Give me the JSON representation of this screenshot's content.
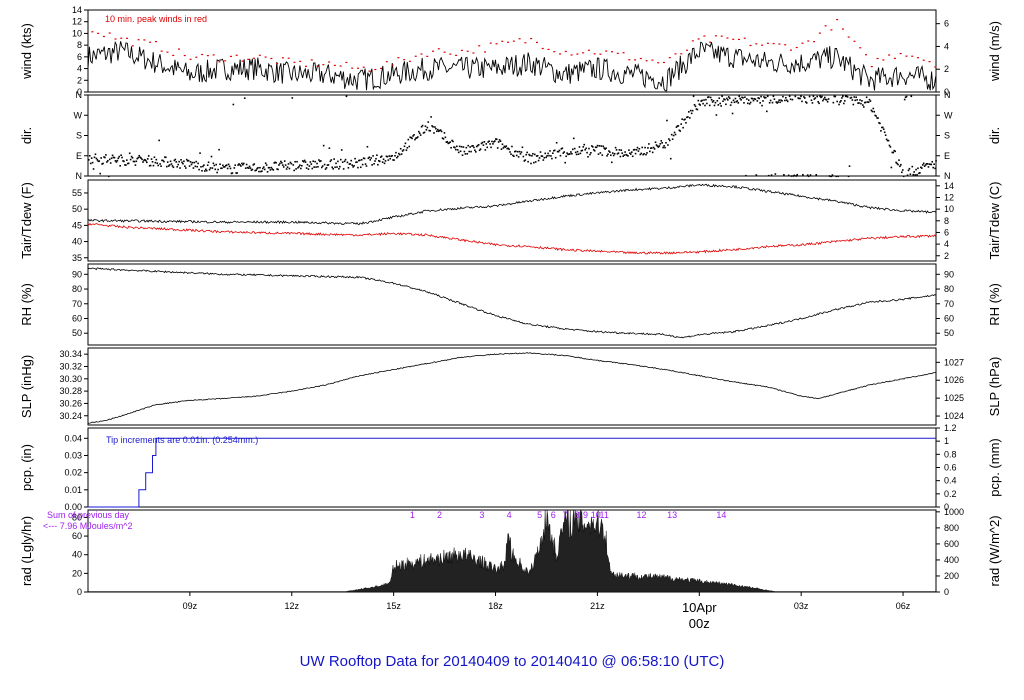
{
  "title": "UW Rooftop Data for 20140409  to  20140410 @ 06:58:10  (UTC)",
  "colors": {
    "black": "#000000",
    "red": "#e00000",
    "blue": "#1a1ad0",
    "purple": "#a020f0"
  },
  "chart_data": [
    {
      "id": "wind",
      "type": "line",
      "ylabel_left": "wind (kts)",
      "ylabel_right": "wind (m/s)",
      "ylim": [
        0,
        14
      ],
      "yticks_left": [
        0,
        2,
        4,
        6,
        8,
        10,
        12,
        14
      ],
      "ylim_right": [
        0,
        7.2
      ],
      "yticks_right": [
        0,
        2,
        4,
        6
      ],
      "annotation": "10 min. peak winds in red",
      "series": [
        {
          "color": "black",
          "x": [
            6.0,
            7.0,
            8.0,
            9.0,
            10.0,
            11.0,
            12.0,
            13.0,
            14.0,
            15.0,
            16.0,
            17.0,
            18.0,
            19.0,
            20.0,
            21.0,
            22.0,
            23.0,
            24.0,
            25.0,
            26.0,
            27.0,
            28.0,
            29.0,
            30.0,
            30.97
          ],
          "y": [
            6,
            7,
            5,
            3,
            4,
            4,
            3,
            3,
            2,
            3,
            4,
            4,
            4,
            5,
            3,
            4,
            3,
            2,
            7,
            6,
            5,
            5,
            6,
            2,
            3,
            2
          ]
        },
        {
          "color": "red",
          "style": "points",
          "x": [
            6.0,
            7.0,
            8.0,
            9.0,
            10.0,
            11.0,
            12.0,
            13.0,
            14.0,
            15.0,
            16.0,
            17.0,
            18.0,
            19.0,
            20.0,
            21.0,
            22.0,
            23.0,
            24.0,
            25.0,
            26.0,
            27.0,
            28.0,
            29.0,
            30.0,
            30.97
          ],
          "y": [
            11,
            9,
            8,
            6,
            6,
            6,
            5,
            5,
            4,
            5,
            7,
            7,
            8,
            9,
            7,
            7,
            6,
            5,
            9,
            9,
            8,
            8,
            12,
            5,
            7,
            5
          ]
        }
      ]
    },
    {
      "id": "dir",
      "type": "scatter",
      "ylabel_left": "dir.",
      "ylabel_right": "dir.",
      "ylim": [
        0,
        360
      ],
      "yticks_left": [
        "N",
        "E",
        "S",
        "W",
        "N"
      ],
      "yticks_right": [
        "N",
        "E",
        "S",
        "W",
        "N"
      ],
      "series": [
        {
          "color": "black",
          "x": [
            6.0,
            7.0,
            8.0,
            9.0,
            10.0,
            11.0,
            12.0,
            13.0,
            14.0,
            15.0,
            16.0,
            17.0,
            18.0,
            19.0,
            20.0,
            21.0,
            22.0,
            23.0,
            24.0,
            25.0,
            26.0,
            27.0,
            28.0,
            29.0,
            30.0,
            30.97
          ],
          "y": [
            80,
            75,
            70,
            55,
            35,
            40,
            50,
            55,
            60,
            90,
            230,
            110,
            150,
            80,
            110,
            120,
            100,
            150,
            330,
            340,
            350,
            350,
            345,
            330,
            10,
            60
          ]
        }
      ]
    },
    {
      "id": "temp",
      "type": "line",
      "ylabel_left": "Tair/Tdew (F)",
      "ylabel_right": "Tair/Tdew (C)",
      "ylim": [
        34,
        59
      ],
      "yticks_left": [
        35,
        40,
        45,
        50,
        55
      ],
      "ylim_right": [
        1.1,
        15
      ],
      "yticks_right": [
        2,
        4,
        6,
        8,
        10,
        12,
        14
      ],
      "series": [
        {
          "color": "black",
          "x": [
            6.0,
            8.0,
            10.0,
            12.0,
            14.0,
            15.0,
            16.0,
            17.0,
            18.0,
            19.0,
            20.0,
            21.0,
            22.0,
            23.0,
            24.0,
            25.0,
            26.0,
            27.0,
            28.0,
            29.0,
            30.0,
            30.97
          ],
          "y": [
            46.5,
            46.3,
            46.0,
            46.0,
            45.5,
            47.5,
            49.5,
            50.3,
            51.0,
            52.5,
            54.0,
            55.0,
            56.0,
            56.5,
            57.5,
            57.0,
            55.5,
            54.0,
            52.5,
            50.5,
            49.5,
            49.0
          ]
        },
        {
          "color": "red",
          "x": [
            6.0,
            7.0,
            8.0,
            10.0,
            12.0,
            14.0,
            15.0,
            16.0,
            17.0,
            18.0,
            19.0,
            20.0,
            21.0,
            22.0,
            23.0,
            24.0,
            25.0,
            26.0,
            27.0,
            28.0,
            29.0,
            30.0,
            30.97
          ],
          "y": [
            45.5,
            44.5,
            44.0,
            43.0,
            42.5,
            42.0,
            42.5,
            42.0,
            40.5,
            39.0,
            38.5,
            37.5,
            37.0,
            36.5,
            36.5,
            36.8,
            37.5,
            38.5,
            39.0,
            40.0,
            41.0,
            41.5,
            41.8
          ]
        }
      ]
    },
    {
      "id": "rh",
      "type": "line",
      "ylabel_left": "RH (%)",
      "ylabel_right": "RH (%)",
      "ylim": [
        42,
        97
      ],
      "yticks_left": [
        50,
        60,
        70,
        80,
        90
      ],
      "yticks_right": [
        50,
        60,
        70,
        80,
        90
      ],
      "series": [
        {
          "color": "black",
          "x": [
            6.0,
            7.0,
            8.0,
            10.0,
            12.0,
            14.0,
            15.0,
            16.0,
            17.0,
            18.0,
            19.0,
            20.0,
            21.0,
            22.0,
            23.0,
            23.5,
            24.0,
            25.0,
            26.0,
            27.0,
            28.0,
            29.0,
            30.0,
            30.97
          ],
          "y": [
            94,
            93,
            92,
            90,
            89,
            88,
            84,
            78,
            70,
            62,
            56,
            53,
            51,
            50,
            49,
            47,
            49,
            51,
            55,
            60,
            66,
            71,
            73,
            76
          ]
        }
      ]
    },
    {
      "id": "slp",
      "type": "line",
      "ylabel_left": "SLP (inHg)",
      "ylabel_right": "SLP (hPa)",
      "ylim": [
        30.225,
        30.35
      ],
      "yticks_left": [
        30.24,
        30.26,
        30.28,
        30.3,
        30.32,
        30.34
      ],
      "ylim_right": [
        1023.5,
        1027.8
      ],
      "yticks_right": [
        1024,
        1025,
        1026,
        1027
      ],
      "series": [
        {
          "color": "black",
          "x": [
            6.0,
            6.5,
            7.0,
            8.0,
            9.0,
            10.0,
            11.0,
            12.0,
            13.0,
            14.0,
            15.0,
            16.0,
            17.0,
            18.0,
            19.0,
            20.0,
            21.0,
            22.0,
            23.0,
            24.0,
            25.0,
            26.0,
            27.0,
            27.5,
            28.0,
            29.0,
            30.0,
            30.97
          ],
          "y": [
            30.228,
            30.232,
            30.24,
            30.258,
            30.265,
            30.268,
            30.272,
            30.28,
            30.29,
            30.305,
            30.315,
            30.325,
            30.335,
            30.34,
            30.342,
            30.338,
            30.33,
            30.323,
            30.315,
            30.305,
            30.295,
            30.287,
            30.272,
            30.268,
            30.275,
            30.29,
            30.3,
            30.31
          ]
        }
      ]
    },
    {
      "id": "pcp",
      "type": "line",
      "ylabel_left": "pcp. (in)",
      "ylabel_right": "pcp. (mm)",
      "ylim": [
        0,
        0.046
      ],
      "yticks_left": [
        0.0,
        0.01,
        0.02,
        0.03,
        0.04
      ],
      "ylim_right": [
        0,
        1.2
      ],
      "yticks_right": [
        0,
        0.2,
        0.4,
        0.6,
        0.8,
        1,
        1.2
      ],
      "annotation": "Tip increments are 0.01in. (0.254mm.)",
      "series": [
        {
          "color": "blue",
          "step": true,
          "x": [
            6.0,
            7.5,
            7.5,
            7.7,
            7.7,
            7.9,
            7.9,
            8.0,
            8.0,
            30.97
          ],
          "y": [
            0,
            0,
            0.01,
            0.01,
            0.02,
            0.02,
            0.03,
            0.03,
            0.04,
            0.04
          ]
        }
      ]
    },
    {
      "id": "rad",
      "type": "area",
      "ylabel_left": "rad (Lgly/hr)",
      "ylabel_right": "rad (W/m^2)",
      "ylim": [
        0,
        88
      ],
      "yticks_left": [
        0,
        20,
        40,
        60,
        80
      ],
      "ylim_right": [
        0,
        1023
      ],
      "yticks_right": [
        0,
        200,
        400,
        600,
        800,
        1000
      ],
      "annotation_1": "Sum of previous day",
      "annotation_2": "<--- 7.96 MJoules/m^2",
      "markers": [
        "1",
        "2",
        "3",
        "4",
        "5",
        "6",
        "7",
        "8",
        "9",
        "10",
        "11",
        "12",
        "13",
        "14"
      ],
      "marker_x": [
        15.55,
        16.35,
        17.6,
        18.4,
        19.3,
        19.7,
        20.05,
        20.4,
        20.65,
        20.95,
        21.2,
        22.3,
        23.2,
        24.65
      ],
      "series": [
        {
          "color": "black",
          "x": [
            6.0,
            13.5,
            14.0,
            14.5,
            14.9,
            15.0,
            15.5,
            16.0,
            16.5,
            17.0,
            17.5,
            18.0,
            18.3,
            18.35,
            18.5,
            19.0,
            19.3,
            19.5,
            19.8,
            20.0,
            20.2,
            21.0,
            21.2,
            21.4,
            22.0,
            23.0,
            23.5,
            24.0,
            24.5,
            25.0,
            25.5,
            26.0,
            26.3,
            30.97
          ],
          "y": [
            0,
            0,
            3,
            6,
            10,
            28,
            32,
            35,
            38,
            42,
            35,
            25,
            30,
            70,
            40,
            20,
            50,
            85,
            40,
            75,
            78,
            76,
            72,
            20,
            18,
            16,
            14,
            12,
            10,
            8,
            5,
            2,
            0,
            0
          ]
        }
      ]
    }
  ],
  "xaxis": {
    "range": [
      6.0,
      30.97
    ],
    "ticks": [
      9,
      12,
      15,
      18,
      21,
      24,
      27,
      30
    ],
    "labels": [
      "09z",
      "12z",
      "15z",
      "18z",
      "21z",
      "",
      "03z",
      "06z"
    ],
    "date_label": "10Apr",
    "date_sub": "00z",
    "date_x": 24
  }
}
